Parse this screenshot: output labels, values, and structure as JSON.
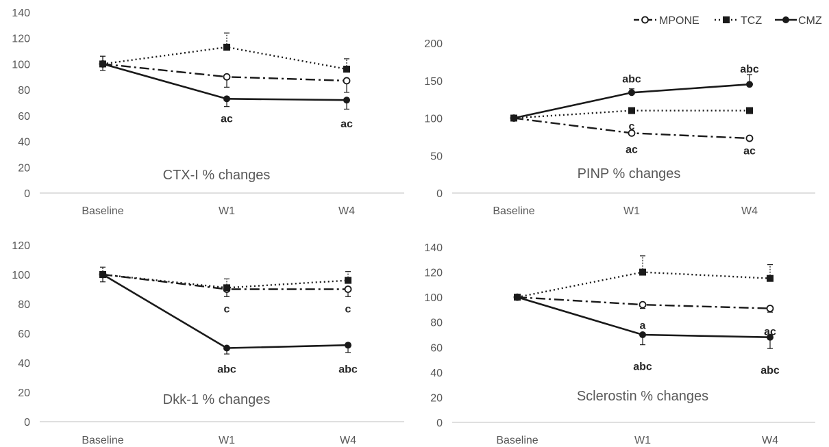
{
  "legend": [
    {
      "name": "MPONE",
      "marker": "open-circle",
      "line": "dash-dot"
    },
    {
      "name": "TCZ",
      "marker": "square",
      "line": "dotted"
    },
    {
      "name": "CMZ",
      "marker": "filled-circle",
      "line": "solid"
    }
  ],
  "colors": {
    "series": "#1a1a1a",
    "axis": "#bfbfbf",
    "text": "#595959"
  },
  "chart_data": [
    {
      "type": "line",
      "title": "CTX-I % changes",
      "categories": [
        "Baseline",
        "W1",
        "W4"
      ],
      "ylim": [
        0,
        140
      ],
      "yticks": [
        0,
        20,
        40,
        60,
        80,
        100,
        120,
        140
      ],
      "series": [
        {
          "name": "MPONE",
          "values": [
            100,
            90,
            87
          ],
          "error_up": [
            6,
            0,
            0
          ],
          "error_down": [
            0,
            8,
            9
          ]
        },
        {
          "name": "TCZ",
          "values": [
            100,
            113,
            96
          ],
          "error_up": [
            6,
            11,
            8
          ],
          "error_down": [
            0,
            0,
            0
          ]
        },
        {
          "name": "CMZ",
          "values": [
            100,
            73,
            72
          ],
          "error_up": [
            0,
            0,
            0
          ],
          "error_down": [
            5,
            6,
            7
          ]
        }
      ],
      "annotations": [
        {
          "category": "W1",
          "value": 58,
          "text": "ac"
        },
        {
          "category": "W4",
          "value": 54,
          "text": "ac"
        }
      ]
    },
    {
      "type": "line",
      "title": "PINP % changes",
      "categories": [
        "Baseline",
        "W1",
        "W4"
      ],
      "ylim": [
        0,
        200
      ],
      "yticks": [
        0,
        50,
        100,
        150,
        200
      ],
      "series": [
        {
          "name": "MPONE",
          "values": [
            100,
            80,
            73
          ],
          "error_up": [
            0,
            0,
            0
          ],
          "error_down": [
            0,
            3,
            3
          ]
        },
        {
          "name": "TCZ",
          "values": [
            100,
            110,
            110
          ],
          "error_up": [
            0,
            0,
            0
          ],
          "error_down": [
            4,
            3,
            4
          ]
        },
        {
          "name": "CMZ",
          "values": [
            100,
            134,
            145
          ],
          "error_up": [
            0,
            5,
            13
          ],
          "error_down": [
            0,
            0,
            0
          ]
        }
      ],
      "annotations": [
        {
          "category": "W1",
          "value": 153,
          "text": "abc"
        },
        {
          "category": "W4",
          "value": 166,
          "text": "abc"
        },
        {
          "category": "W1",
          "value": 90,
          "text": "c"
        },
        {
          "category": "W1",
          "value": 59,
          "text": "ac"
        },
        {
          "category": "W4",
          "value": 57,
          "text": "ac"
        }
      ]
    },
    {
      "type": "line",
      "title": "Dkk-1 % changes",
      "categories": [
        "Baseline",
        "W1",
        "W4"
      ],
      "ylim": [
        0,
        120
      ],
      "yticks": [
        0,
        20,
        40,
        60,
        80,
        100,
        120
      ],
      "series": [
        {
          "name": "MPONE",
          "values": [
            100,
            90,
            90
          ],
          "error_up": [
            0,
            0,
            0
          ],
          "error_down": [
            0,
            5,
            5
          ]
        },
        {
          "name": "TCZ",
          "values": [
            100,
            91,
            96
          ],
          "error_up": [
            5,
            6,
            6
          ],
          "error_down": [
            0,
            0,
            0
          ]
        },
        {
          "name": "CMZ",
          "values": [
            100,
            50,
            52
          ],
          "error_up": [
            0,
            0,
            0
          ],
          "error_down": [
            5,
            4,
            5
          ]
        }
      ],
      "annotations": [
        {
          "category": "W1",
          "value": 77,
          "text": "c"
        },
        {
          "category": "W4",
          "value": 77,
          "text": "c"
        },
        {
          "category": "W1",
          "value": 36,
          "text": "abc"
        },
        {
          "category": "W4",
          "value": 36,
          "text": "abc"
        }
      ]
    },
    {
      "type": "line",
      "title": "Sclerostin % changes",
      "categories": [
        "Baseline",
        "W1",
        "W4"
      ],
      "ylim": [
        0,
        140
      ],
      "yticks": [
        0,
        20,
        40,
        60,
        80,
        100,
        120,
        140
      ],
      "series": [
        {
          "name": "MPONE",
          "values": [
            100,
            94,
            91
          ],
          "error_up": [
            0,
            0,
            0
          ],
          "error_down": [
            0,
            3,
            3
          ]
        },
        {
          "name": "TCZ",
          "values": [
            100,
            120,
            115
          ],
          "error_up": [
            0,
            13,
            11
          ],
          "error_down": [
            0,
            0,
            0
          ]
        },
        {
          "name": "CMZ",
          "values": [
            100,
            70,
            68
          ],
          "error_up": [
            0,
            0,
            0
          ],
          "error_down": [
            0,
            8,
            9
          ]
        }
      ],
      "annotations": [
        {
          "category": "W1",
          "value": 78,
          "text": "a"
        },
        {
          "category": "W4",
          "value": 73,
          "text": "ac"
        },
        {
          "category": "W1",
          "value": 45,
          "text": "abc"
        },
        {
          "category": "W4",
          "value": 42,
          "text": "abc"
        }
      ]
    }
  ]
}
